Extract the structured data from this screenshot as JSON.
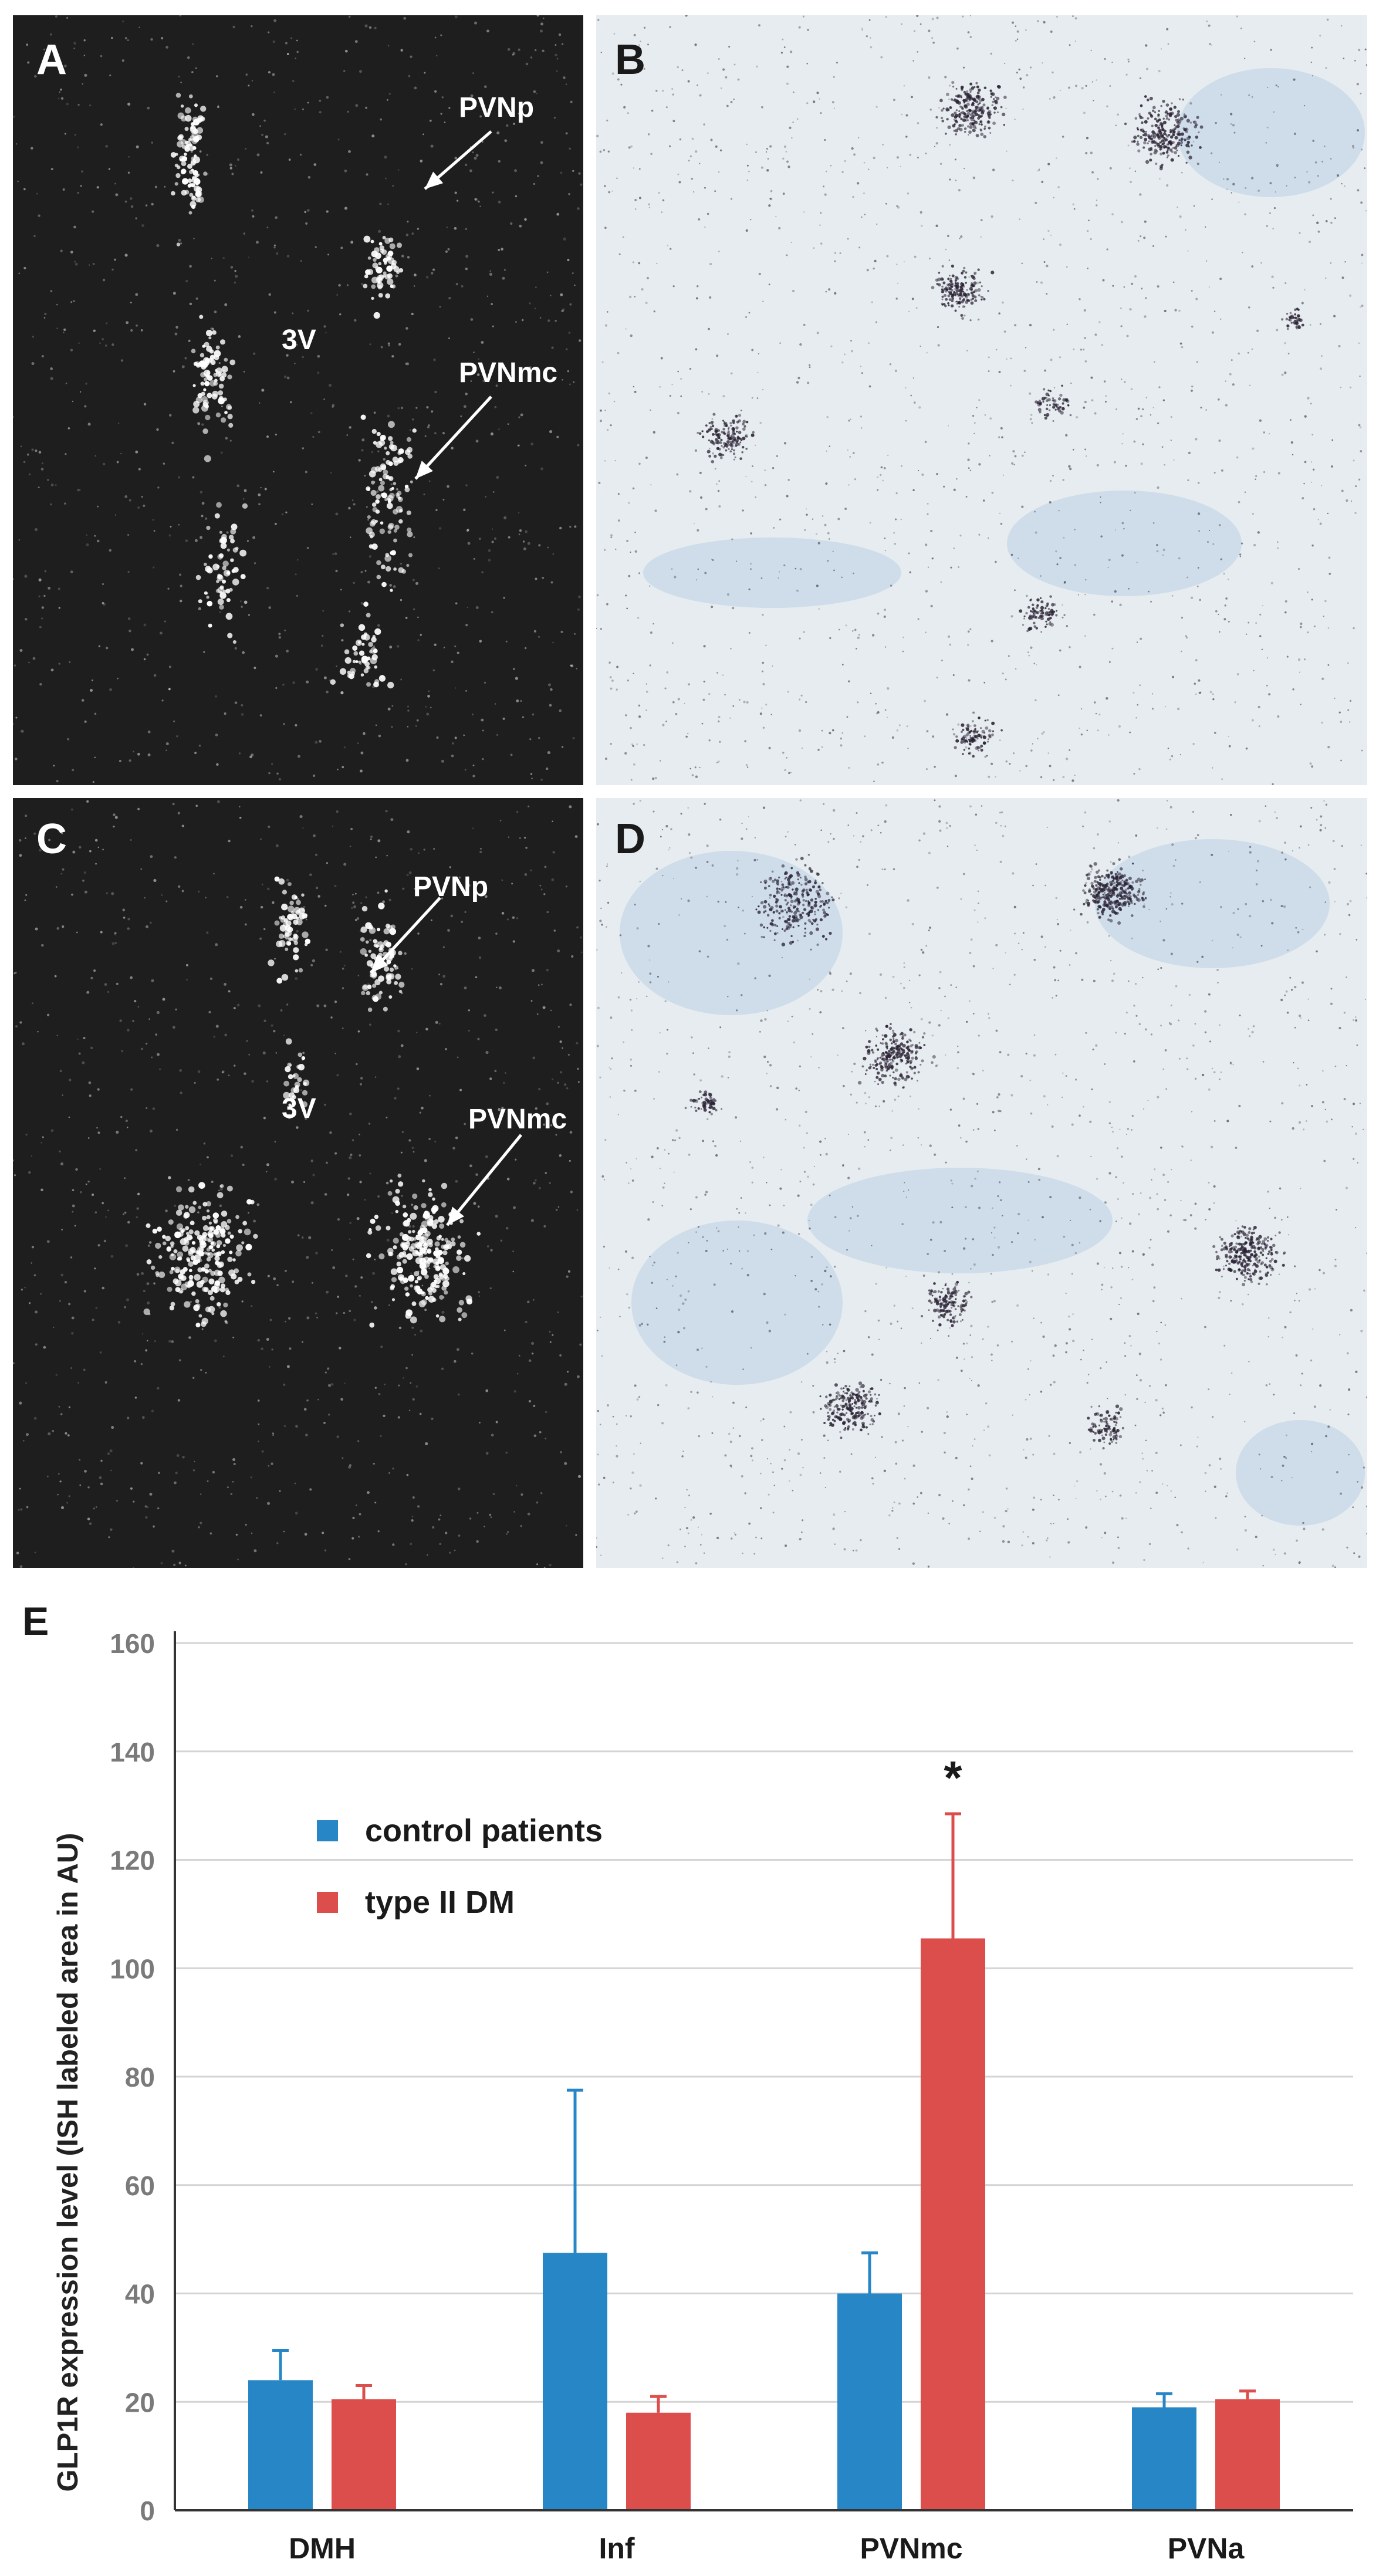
{
  "panels": {
    "A": {
      "label": "A",
      "annotations": {
        "pvnp": "PVNp",
        "pvnmc": "PVNmc",
        "v3": "3V"
      }
    },
    "B": {
      "label": "B"
    },
    "C": {
      "label": "C",
      "annotations": {
        "pvnp": "PVNp",
        "pvnmc": "PVNmc",
        "v3": "3V"
      }
    },
    "D": {
      "label": "D"
    },
    "E": {
      "label": "E"
    }
  },
  "colors": {
    "dark_bg": "#1e1e1e",
    "light_bg": "#e6ecef",
    "control": "#2787c6",
    "diabetic": "#db4e4b",
    "axis": "#333333",
    "grid": "#d4d4d4"
  },
  "chart_data": {
    "type": "bar",
    "categories": [
      "DMH",
      "Inf",
      "PVNmc",
      "PVNa"
    ],
    "series": [
      {
        "name": "control patients",
        "values": [
          24,
          47.5,
          40,
          19
        ],
        "errors": [
          5.5,
          30,
          7.5,
          2.5
        ]
      },
      {
        "name": "type II DM",
        "values": [
          20.5,
          18,
          105.5,
          20.5
        ],
        "errors": [
          2.5,
          3,
          23,
          1.5
        ]
      }
    ],
    "ylabel": "GLP1R expression level (ISH labeled area in AU)",
    "xlabel": "",
    "ylim": [
      0,
      160
    ],
    "yticks": [
      0,
      20,
      40,
      60,
      80,
      100,
      120,
      140,
      160
    ],
    "annotations": [
      {
        "category": "PVNmc",
        "text": "*"
      }
    ],
    "legend": "upper-left",
    "grid": true
  }
}
